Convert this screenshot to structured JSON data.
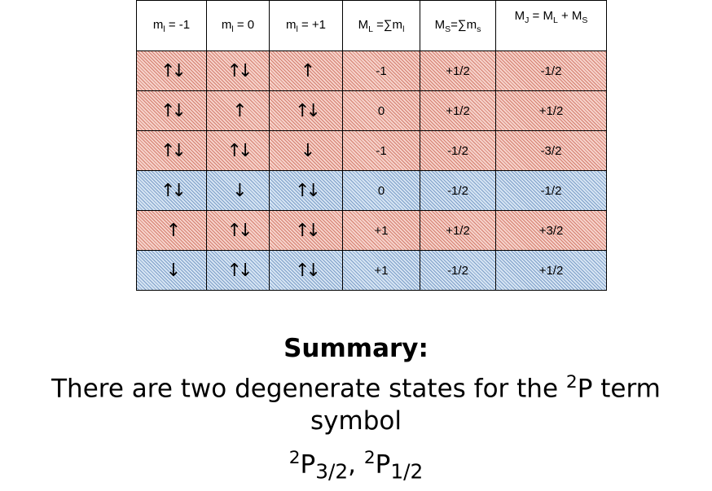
{
  "table": {
    "header": [
      [
        "m",
        "l",
        " = -1"
      ],
      [
        "m",
        "l",
        " = 0"
      ],
      [
        "m",
        "l",
        " = +1"
      ],
      [
        "M",
        "L",
        " =∑m",
        "l"
      ],
      [
        "M",
        "S",
        "=∑m",
        "s"
      ],
      [
        "M",
        "J",
        " = M",
        "L",
        " + M",
        "S"
      ]
    ],
    "rows": [
      {
        "color": "red",
        "cells": [
          "↑↓",
          "↑↓",
          "↑",
          "-1",
          "+1/2",
          "-1/2"
        ]
      },
      {
        "color": "red",
        "cells": [
          "↑↓",
          "↑",
          "↑↓",
          "0",
          "+1/2",
          "+1/2"
        ]
      },
      {
        "color": "red",
        "cells": [
          "↑↓",
          "↑↓",
          "↓",
          "-1",
          "-1/2",
          "-3/2"
        ]
      },
      {
        "color": "blue",
        "cells": [
          "↑↓",
          "↓",
          "↑↓",
          "0",
          "-1/2",
          "-1/2"
        ]
      },
      {
        "color": "red",
        "cells": [
          "↑",
          "↑↓",
          "↑↓",
          "+1",
          "+1/2",
          "+3/2"
        ]
      },
      {
        "color": "blue",
        "cells": [
          "↓",
          "↑↓",
          "↑↓",
          "+1",
          "-1/2",
          "+1/2"
        ]
      }
    ]
  },
  "summary": {
    "heading": "Summary:",
    "lines": [
      [
        {
          "text": "There are two degenerate states for the ",
          "style": "normal"
        },
        {
          "text": "2",
          "style": "sup"
        },
        {
          "text": "P term symbol",
          "style": "normal"
        }
      ],
      [
        {
          "text": "2",
          "style": "sup"
        },
        {
          "text": "P",
          "style": "normal"
        },
        {
          "text": "3/2",
          "style": "sub"
        },
        {
          "text": ", ",
          "style": "normal"
        },
        {
          "text": "2",
          "style": "sup"
        },
        {
          "text": "P",
          "style": "normal"
        },
        {
          "text": "1/2",
          "style": "sub"
        }
      ]
    ]
  }
}
